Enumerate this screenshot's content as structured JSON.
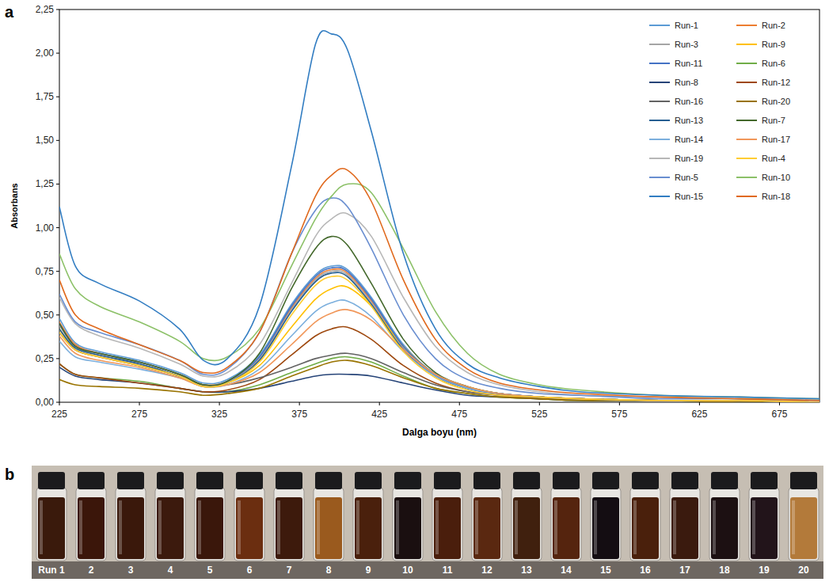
{
  "chart_data": {
    "type": "line",
    "x_label": "Dalga boyu (nm)",
    "y_label": "Absorbans",
    "x": [
      225,
      235,
      250,
      275,
      300,
      315,
      330,
      350,
      370,
      385,
      395,
      405,
      420,
      440,
      460,
      480,
      500,
      525,
      550,
      600,
      650,
      700
    ],
    "xlim": [
      225,
      700
    ],
    "xticks": [
      225,
      275,
      325,
      375,
      425,
      475,
      525,
      575,
      625,
      675
    ],
    "ylim": [
      0,
      2.25
    ],
    "yticks": [
      {
        "value": 0,
        "label": "0,00"
      },
      {
        "value": 0.25,
        "label": "0,25"
      },
      {
        "value": 0.5,
        "label": "0,50"
      },
      {
        "value": 0.75,
        "label": "0,75"
      },
      {
        "value": 1,
        "label": "1,00"
      },
      {
        "value": 1.25,
        "label": "1,25"
      },
      {
        "value": 1.5,
        "label": "1,50"
      },
      {
        "value": 1.75,
        "label": "1,75"
      },
      {
        "value": 2,
        "label": "2,00"
      },
      {
        "value": 2.25,
        "label": "2,25"
      }
    ],
    "grid": false,
    "legend": "upper right",
    "series": [
      {
        "name": "Run-1",
        "color": "#5b9bd5",
        "values": [
          0.48,
          0.34,
          0.29,
          0.24,
          0.17,
          0.11,
          0.13,
          0.27,
          0.56,
          0.73,
          0.78,
          0.76,
          0.6,
          0.33,
          0.16,
          0.09,
          0.05,
          0.03,
          0.02,
          0.01,
          0.01,
          0.0
        ]
      },
      {
        "name": "Run-2",
        "color": "#ed7d31",
        "values": [
          0.46,
          0.33,
          0.28,
          0.23,
          0.16,
          0.1,
          0.12,
          0.25,
          0.54,
          0.71,
          0.76,
          0.74,
          0.58,
          0.31,
          0.15,
          0.08,
          0.05,
          0.03,
          0.02,
          0.01,
          0.01,
          0.0
        ]
      },
      {
        "name": "Run-3",
        "color": "#a5a5a5",
        "values": [
          0.44,
          0.32,
          0.27,
          0.22,
          0.15,
          0.1,
          0.12,
          0.25,
          0.53,
          0.7,
          0.75,
          0.73,
          0.57,
          0.31,
          0.15,
          0.08,
          0.04,
          0.03,
          0.02,
          0.01,
          0.01,
          0.0
        ]
      },
      {
        "name": "Run-9",
        "color": "#ffc000",
        "values": [
          0.42,
          0.3,
          0.26,
          0.21,
          0.15,
          0.1,
          0.11,
          0.21,
          0.43,
          0.59,
          0.65,
          0.66,
          0.55,
          0.32,
          0.16,
          0.09,
          0.05,
          0.03,
          0.02,
          0.01,
          0.01,
          0.0
        ]
      },
      {
        "name": "Run-11",
        "color": "#4472c4",
        "values": [
          0.45,
          0.32,
          0.28,
          0.23,
          0.16,
          0.1,
          0.12,
          0.26,
          0.55,
          0.72,
          0.77,
          0.75,
          0.59,
          0.32,
          0.16,
          0.08,
          0.05,
          0.03,
          0.02,
          0.01,
          0.01,
          0.0
        ]
      },
      {
        "name": "Run-6",
        "color": "#70ad47",
        "values": [
          0.22,
          0.16,
          0.14,
          0.12,
          0.08,
          0.06,
          0.06,
          0.1,
          0.17,
          0.22,
          0.25,
          0.26,
          0.23,
          0.15,
          0.08,
          0.05,
          0.03,
          0.02,
          0.01,
          0.01,
          0.0,
          0.0
        ]
      },
      {
        "name": "Run-8",
        "color": "#264478",
        "values": [
          0.2,
          0.15,
          0.13,
          0.11,
          0.08,
          0.06,
          0.06,
          0.08,
          0.12,
          0.15,
          0.16,
          0.16,
          0.15,
          0.11,
          0.07,
          0.04,
          0.03,
          0.02,
          0.01,
          0.01,
          0.0,
          0.0
        ]
      },
      {
        "name": "Run-12",
        "color": "#9e480e",
        "values": [
          0.22,
          0.16,
          0.14,
          0.11,
          0.08,
          0.06,
          0.07,
          0.13,
          0.27,
          0.38,
          0.42,
          0.43,
          0.36,
          0.21,
          0.11,
          0.06,
          0.04,
          0.02,
          0.02,
          0.01,
          0.01,
          0.0
        ]
      },
      {
        "name": "Run-16",
        "color": "#636363",
        "values": [
          0.4,
          0.3,
          0.26,
          0.21,
          0.15,
          0.1,
          0.1,
          0.14,
          0.2,
          0.25,
          0.27,
          0.28,
          0.25,
          0.17,
          0.1,
          0.06,
          0.04,
          0.03,
          0.02,
          0.01,
          0.01,
          0.0
        ]
      },
      {
        "name": "Run-20",
        "color": "#997300",
        "values": [
          0.13,
          0.1,
          0.09,
          0.08,
          0.06,
          0.04,
          0.05,
          0.08,
          0.15,
          0.2,
          0.23,
          0.24,
          0.21,
          0.14,
          0.08,
          0.05,
          0.03,
          0.02,
          0.01,
          0.01,
          0.0,
          0.0
        ]
      },
      {
        "name": "Run-13",
        "color": "#255e91",
        "values": [
          0.42,
          0.31,
          0.27,
          0.22,
          0.15,
          0.09,
          0.11,
          0.24,
          0.52,
          0.69,
          0.74,
          0.72,
          0.56,
          0.3,
          0.15,
          0.08,
          0.05,
          0.03,
          0.02,
          0.01,
          0.01,
          0.0
        ]
      },
      {
        "name": "Run-7",
        "color": "#43682b",
        "values": [
          0.45,
          0.32,
          0.28,
          0.23,
          0.16,
          0.1,
          0.12,
          0.28,
          0.65,
          0.88,
          0.95,
          0.9,
          0.68,
          0.36,
          0.17,
          0.09,
          0.05,
          0.03,
          0.02,
          0.01,
          0.01,
          0.0
        ]
      },
      {
        "name": "Run-14",
        "color": "#7cafdd",
        "values": [
          0.35,
          0.26,
          0.23,
          0.19,
          0.14,
          0.09,
          0.1,
          0.19,
          0.38,
          0.52,
          0.57,
          0.58,
          0.49,
          0.29,
          0.15,
          0.08,
          0.05,
          0.03,
          0.02,
          0.01,
          0.01,
          0.0
        ]
      },
      {
        "name": "Run-17",
        "color": "#f1975a",
        "values": [
          0.38,
          0.28,
          0.24,
          0.2,
          0.14,
          0.09,
          0.1,
          0.17,
          0.33,
          0.46,
          0.51,
          0.53,
          0.47,
          0.3,
          0.16,
          0.09,
          0.05,
          0.03,
          0.02,
          0.01,
          0.01,
          0.0
        ]
      },
      {
        "name": "Run-19",
        "color": "#b7b7b7",
        "values": [
          0.6,
          0.45,
          0.38,
          0.31,
          0.22,
          0.15,
          0.17,
          0.33,
          0.68,
          0.95,
          1.05,
          1.08,
          0.95,
          0.6,
          0.32,
          0.17,
          0.1,
          0.06,
          0.04,
          0.03,
          0.02,
          0.01
        ]
      },
      {
        "name": "Run-4",
        "color": "#ffcd33",
        "values": [
          0.4,
          0.3,
          0.26,
          0.21,
          0.15,
          0.09,
          0.11,
          0.23,
          0.5,
          0.67,
          0.72,
          0.7,
          0.55,
          0.29,
          0.14,
          0.07,
          0.04,
          0.03,
          0.02,
          0.01,
          0.01,
          0.0
        ]
      },
      {
        "name": "Run-5",
        "color": "#698ed0",
        "values": [
          0.62,
          0.46,
          0.4,
          0.33,
          0.24,
          0.16,
          0.19,
          0.4,
          0.85,
          1.1,
          1.17,
          1.12,
          0.88,
          0.5,
          0.25,
          0.13,
          0.08,
          0.05,
          0.04,
          0.02,
          0.02,
          0.01
        ]
      },
      {
        "name": "Run-10",
        "color": "#8cc168",
        "values": [
          0.85,
          0.65,
          0.55,
          0.46,
          0.35,
          0.25,
          0.26,
          0.42,
          0.78,
          1.05,
          1.18,
          1.25,
          1.2,
          0.88,
          0.52,
          0.28,
          0.16,
          0.1,
          0.07,
          0.04,
          0.03,
          0.02
        ]
      },
      {
        "name": "Run-15",
        "color": "#327dc2",
        "values": [
          1.12,
          0.78,
          0.68,
          0.58,
          0.42,
          0.24,
          0.25,
          0.55,
          1.35,
          2.05,
          2.11,
          2.02,
          1.55,
          0.85,
          0.42,
          0.22,
          0.14,
          0.09,
          0.06,
          0.04,
          0.03,
          0.02
        ]
      },
      {
        "name": "Run-18",
        "color": "#e0691d",
        "values": [
          0.7,
          0.5,
          0.42,
          0.33,
          0.24,
          0.17,
          0.2,
          0.4,
          0.85,
          1.18,
          1.3,
          1.33,
          1.15,
          0.7,
          0.36,
          0.19,
          0.11,
          0.07,
          0.05,
          0.03,
          0.02,
          0.01
        ]
      }
    ]
  },
  "panel_labels": [
    "a",
    "b"
  ],
  "vials": {
    "labels": [
      "Run 1",
      "2",
      "3",
      "4",
      "5",
      "6",
      "7",
      "8",
      "9",
      "10",
      "11",
      "12",
      "13",
      "14",
      "15",
      "16",
      "17",
      "18",
      "19",
      "20"
    ],
    "colors": [
      "#3a1a0c",
      "#3b160a",
      "#3a180b",
      "#3c1a0d",
      "#3a170b",
      "#6b2e10",
      "#3d1a0c",
      "#9a5a1e",
      "#4a200c",
      "#1a0f10",
      "#4a1e0c",
      "#5a2810",
      "#40200e",
      "#55240e",
      "#140d12",
      "#4a200c",
      "#3a1a0e",
      "#1c1012",
      "#22141a",
      "#b37a3a"
    ]
  }
}
